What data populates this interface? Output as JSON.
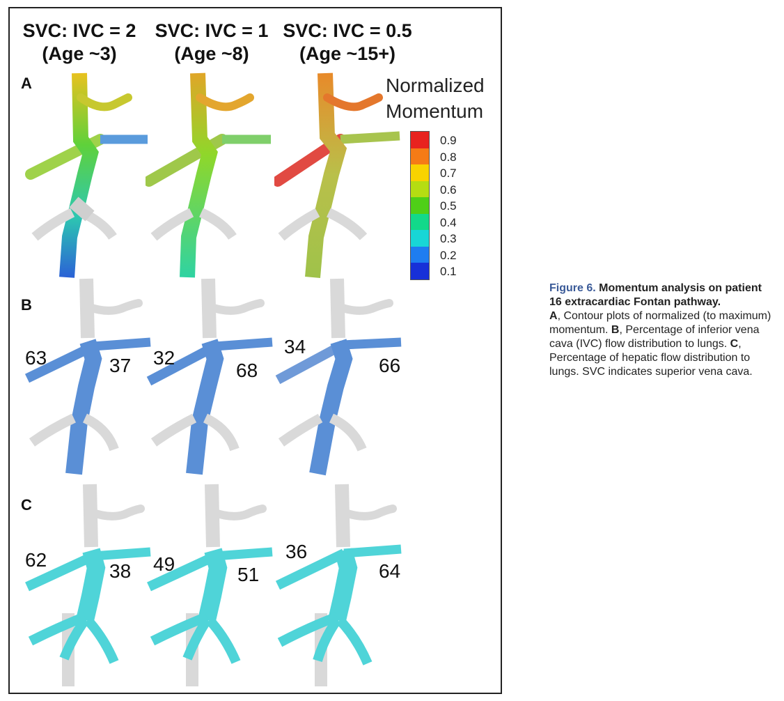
{
  "columns": [
    {
      "ratio": "SVC: IVC = 2",
      "age": "(Age ~3)"
    },
    {
      "ratio": "SVC: IVC = 1",
      "age": "(Age ~8)"
    },
    {
      "ratio": "SVC: IVC = 0.5",
      "age": "(Age ~15+)"
    }
  ],
  "panels": {
    "a": {
      "letter": "A"
    },
    "b": {
      "letter": "B",
      "left_values": [
        "63",
        "32",
        "34"
      ],
      "right_values": [
        "37",
        "68",
        "66"
      ]
    },
    "c": {
      "letter": "C",
      "left_values": [
        "62",
        "49",
        "36"
      ],
      "right_values": [
        "38",
        "51",
        "64"
      ]
    }
  },
  "legend": {
    "title_line1": "Normalized",
    "title_line2": "Momentum",
    "ticks": [
      "0.9",
      "0.8",
      "0.7",
      "0.6",
      "0.5",
      "0.4",
      "0.3",
      "0.2",
      "0.1"
    ],
    "colors": [
      "#e8231f",
      "#f57b16",
      "#f8d300",
      "#b5dd12",
      "#4fcf17",
      "#12d98a",
      "#18d6d6",
      "#1e7df0",
      "#1730d8"
    ]
  },
  "caption": {
    "label": "Figure 6.",
    "title": "Momentum analysis on patient 16 extracardiac Fontan pathway.",
    "a_letter": "A",
    "a_text": ", Contour plots of normalized (to maximum) momentum. ",
    "b_letter": "B",
    "b_text": ", Percentage of inferior vena cava (IVC) flow distribution to lungs. ",
    "c_letter": "C",
    "c_text": ", Percentage of hepatic flow distribution to lungs. SVC indicates superior vena cava."
  },
  "colors": {
    "vessel_gray": "#d9d9d9",
    "ivc_blue": "#5a8fd6",
    "hepatic_teal": "#4fd4d8",
    "caption_accent": "#3a5a98"
  }
}
